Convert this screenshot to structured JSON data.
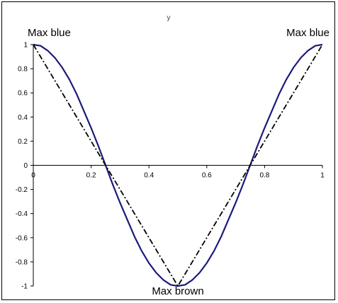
{
  "chart_data": {
    "type": "line",
    "title": "",
    "xlabel": "",
    "ylabel": "y",
    "xlim": [
      0,
      1
    ],
    "ylim": [
      -1,
      1
    ],
    "x_ticks": [
      "0",
      "0.2",
      "0.4",
      "0.6",
      "0.8",
      "1"
    ],
    "x_tick_values": [
      0,
      0.2,
      0.4,
      0.6,
      0.8,
      1
    ],
    "y_ticks": [
      "1",
      "0.8",
      "0.6",
      "0.4",
      "0.2",
      "0",
      "-0.2",
      "-0.4",
      "-0.6",
      "-0.8",
      "-1"
    ],
    "y_tick_values": [
      1,
      0.8,
      0.6,
      0.4,
      0.2,
      0,
      -0.2,
      -0.4,
      -0.6,
      -0.8,
      -1
    ],
    "grid": false,
    "legend": "none",
    "series": [
      {
        "color": "#1a1a7a",
        "style": "solid",
        "x": [
          0,
          0.025,
          0.05,
          0.075,
          0.1,
          0.125,
          0.15,
          0.175,
          0.2,
          0.225,
          0.25,
          0.275,
          0.3,
          0.325,
          0.35,
          0.375,
          0.4,
          0.425,
          0.45,
          0.475,
          0.5,
          0.525,
          0.55,
          0.575,
          0.6,
          0.625,
          0.65,
          0.675,
          0.7,
          0.725,
          0.75,
          0.775,
          0.8,
          0.825,
          0.85,
          0.875,
          0.9,
          0.925,
          0.95,
          0.975,
          1
        ],
        "y": [
          1,
          0.99,
          0.95,
          0.89,
          0.81,
          0.71,
          0.59,
          0.45,
          0.31,
          0.16,
          0,
          -0.16,
          -0.31,
          -0.45,
          -0.59,
          -0.71,
          -0.81,
          -0.89,
          -0.95,
          -0.99,
          -1,
          -0.99,
          -0.95,
          -0.89,
          -0.81,
          -0.71,
          -0.59,
          -0.45,
          -0.31,
          -0.16,
          0,
          0.16,
          0.31,
          0.45,
          0.59,
          0.71,
          0.81,
          0.89,
          0.95,
          0.99,
          1
        ]
      },
      {
        "color": "#000000",
        "style": "dash-dot",
        "x": [
          0,
          0.5,
          1
        ],
        "y": [
          1,
          -1,
          1
        ]
      }
    ],
    "annotations": [
      {
        "text": "Max blue",
        "x": 0,
        "y": 1,
        "position": "above"
      },
      {
        "text": "Max blue",
        "x": 1,
        "y": 1,
        "position": "above"
      },
      {
        "text": "Max brown",
        "x": 0.5,
        "y": -1,
        "position": "below"
      }
    ]
  }
}
